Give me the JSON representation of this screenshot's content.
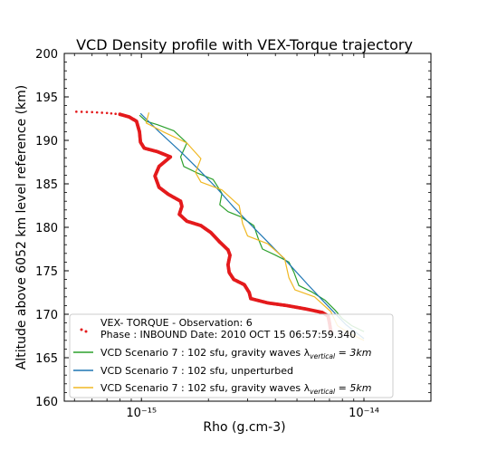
{
  "chart_data": {
    "type": "line",
    "title": "VCD Density profile with VEX-Torque trajectory",
    "xlabel": "Rho (g.cm-3)",
    "ylabel": "Altitude above 6052 km level reference (km)",
    "xscale": "log",
    "xlim": [
      4.5e-16,
      2e-14
    ],
    "ylim": [
      160,
      200
    ],
    "x_tick_labels": [
      "10⁻¹⁵",
      "10⁻¹⁴"
    ],
    "y_ticks": [
      160,
      165,
      170,
      175,
      180,
      185,
      190,
      195,
      200
    ],
    "grid": false,
    "legend_position": "lower-left",
    "series": [
      {
        "name": "VEX- TORQUE - Observation: 6",
        "name_line2": "Phase : INBOUND Date: 2010 OCT 15 06:57:59.340",
        "color": "#e41a1c",
        "style": "dots",
        "points": [
          [
            5.1e-16,
            193.3
          ],
          [
            6e-16,
            193.25
          ],
          [
            7e-16,
            193.15
          ],
          [
            8e-16,
            193.0
          ],
          [
            8.8e-16,
            192.7
          ],
          [
            9.5e-16,
            192.2
          ],
          [
            9.8e-16,
            191.0
          ],
          [
            9.9e-16,
            189.8
          ],
          [
            1.03e-15,
            189.1
          ],
          [
            1.18e-15,
            188.7
          ],
          [
            1.35e-15,
            188.1
          ],
          [
            1.2e-15,
            187.0
          ],
          [
            1.15e-15,
            185.9
          ],
          [
            1.2e-15,
            184.6
          ],
          [
            1.32e-15,
            183.8
          ],
          [
            1.5e-15,
            183.0
          ],
          [
            1.52e-15,
            182.4
          ],
          [
            1.48e-15,
            181.5
          ],
          [
            1.6e-15,
            180.7
          ],
          [
            1.85e-15,
            180.2
          ],
          [
            2.05e-15,
            179.4
          ],
          [
            2.25e-15,
            178.3
          ],
          [
            2.45e-15,
            177.4
          ],
          [
            2.5e-15,
            176.8
          ],
          [
            2.45e-15,
            175.7
          ],
          [
            2.48e-15,
            174.8
          ],
          [
            2.6e-15,
            174.0
          ],
          [
            2.9e-15,
            173.4
          ],
          [
            3.05e-15,
            172.5
          ],
          [
            3.1e-15,
            171.8
          ],
          [
            3.7e-15,
            171.3
          ],
          [
            4.5e-15,
            171.0
          ],
          [
            5.5e-15,
            170.6
          ],
          [
            6.5e-15,
            170.2
          ],
          [
            6.9e-15,
            169.8
          ],
          [
            7e-15,
            169.0
          ],
          [
            7.1e-15,
            168.0
          ]
        ]
      },
      {
        "name": "VCD Scenario 7 : 102 sfu, gravity waves λ",
        "lambda_sub": "vertical",
        "lambda_value": " = 3km",
        "color": "#2ca02c",
        "style": "line",
        "points": [
          [
            9.8e-16,
            192.9
          ],
          [
            1.05e-15,
            192.2
          ],
          [
            1.18e-15,
            191.8
          ],
          [
            1.4e-15,
            191.1
          ],
          [
            1.6e-15,
            189.7
          ],
          [
            1.5e-15,
            188.1
          ],
          [
            1.55e-15,
            187.0
          ],
          [
            1.8e-15,
            186.2
          ],
          [
            2.1e-15,
            185.5
          ],
          [
            2.3e-15,
            183.9
          ],
          [
            2.25e-15,
            182.6
          ],
          [
            2.45e-15,
            181.8
          ],
          [
            2.8e-15,
            181.2
          ],
          [
            3.2e-15,
            180.2
          ],
          [
            3.35e-15,
            178.7
          ],
          [
            3.5e-15,
            177.5
          ],
          [
            4e-15,
            176.8
          ],
          [
            4.6e-15,
            176.0
          ],
          [
            4.85e-15,
            174.8
          ],
          [
            5.1e-15,
            173.3
          ],
          [
            5.8e-15,
            172.6
          ],
          [
            6.7e-15,
            171.6
          ],
          [
            7.4e-15,
            170.5
          ],
          [
            8e-15,
            169.5
          ],
          [
            8.8e-15,
            168.7
          ],
          [
            1e-14,
            168.0
          ]
        ]
      },
      {
        "name": "VCD Scenario 7 : 102 sfu, unperturbed",
        "color": "#1f77b4",
        "style": "line",
        "points": [
          [
            9.9e-16,
            193.1
          ],
          [
            1.2e-15,
            191.0
          ],
          [
            1.5e-15,
            188.7
          ],
          [
            1.8e-15,
            186.7
          ],
          [
            2.2e-15,
            184.4
          ],
          [
            2.6e-15,
            182.3
          ],
          [
            3.1e-15,
            180.3
          ],
          [
            3.8e-15,
            178.0
          ],
          [
            4.6e-15,
            175.8
          ],
          [
            5.6e-15,
            173.4
          ],
          [
            6.8e-15,
            171.1
          ],
          [
            8.3e-15,
            168.8
          ],
          [
            1e-14,
            167.2
          ]
        ]
      },
      {
        "name": "VCD Scenario 7 : 102 sfu, gravity waves λ",
        "lambda_sub": "vertical",
        "lambda_value": " = 5km",
        "color": "#f0b823",
        "style": "line",
        "points": [
          [
            1.08e-15,
            193.2
          ],
          [
            1.05e-15,
            192.0
          ],
          [
            1.25e-15,
            191.0
          ],
          [
            1.6e-15,
            189.7
          ],
          [
            1.85e-15,
            187.9
          ],
          [
            1.75e-15,
            186.3
          ],
          [
            1.85e-15,
            185.2
          ],
          [
            2.3e-15,
            184.3
          ],
          [
            2.75e-15,
            182.5
          ],
          [
            2.85e-15,
            180.4
          ],
          [
            3e-15,
            179.0
          ],
          [
            3.7e-15,
            178.1
          ],
          [
            4.4e-15,
            176.4
          ],
          [
            4.6e-15,
            174.2
          ],
          [
            4.9e-15,
            172.8
          ],
          [
            6e-15,
            172.0
          ],
          [
            7.1e-15,
            170.3
          ],
          [
            7.6e-15,
            168.7
          ],
          [
            8.6e-15,
            167.8
          ],
          [
            1e-14,
            167.0
          ]
        ]
      }
    ]
  }
}
